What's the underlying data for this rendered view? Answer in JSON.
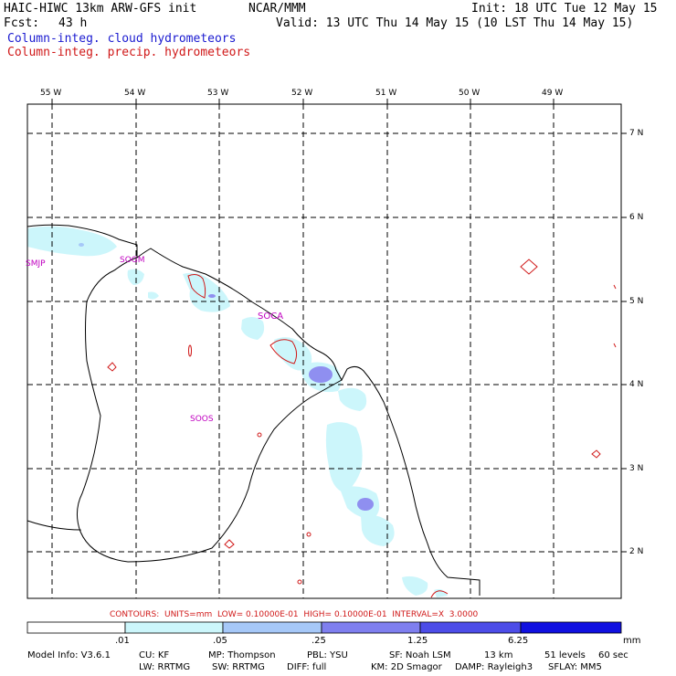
{
  "header": {
    "model": "HAIC-HIWC 13km ARW-GFS init",
    "org": "NCAR/MMM",
    "init": "Init: 18 UTC Tue 12 May 15",
    "fcst_label": "Fcst:",
    "fcst_value": "43 h",
    "valid": "Valid: 13 UTC Thu 14 May 15 (10 LST Thu 14 May 15)",
    "legend_cloud": "Column-integ. cloud hydrometeors",
    "legend_precip": "Column-integ. precip. hydrometeors"
  },
  "map": {
    "lon_labels": [
      "55 W",
      "54 W",
      "53 W",
      "52 W",
      "51 W",
      "50 W",
      "49 W"
    ],
    "lat_labels": [
      "7 N",
      "6 N",
      "5 N",
      "4 N",
      "3 N",
      "2 N"
    ],
    "stations": [
      "SMJP",
      "SOGM",
      "SOCA",
      "SOOS"
    ]
  },
  "contour_info": "CONTOURS:  UNITS=mm  LOW= 0.10000E-01  HIGH= 0.10000E-01  INTERVAL=X  3.0000",
  "colorbar": {
    "ticks": [
      ".01",
      ".05",
      ".25",
      "1.25",
      "6.25"
    ],
    "units": "mm",
    "colors": [
      "#ffffff",
      "#ccf6fb",
      "#a6c8f8",
      "#7f7fef",
      "#4d4de8",
      "#1010e0"
    ]
  },
  "footer": {
    "line1": [
      "Model Info: V3.6.1",
      "CU: KF",
      "MP: Thompson",
      "PBL: YSU",
      "SF: Noah LSM",
      "13 km",
      "51 levels",
      "60 sec"
    ],
    "line2": [
      "LW: RRTMG",
      "SW: RRTMG",
      "DIFF: full",
      "KM: 2D Smagor",
      "DAMP: Rayleigh3",
      "SFLAY: MM5"
    ]
  }
}
